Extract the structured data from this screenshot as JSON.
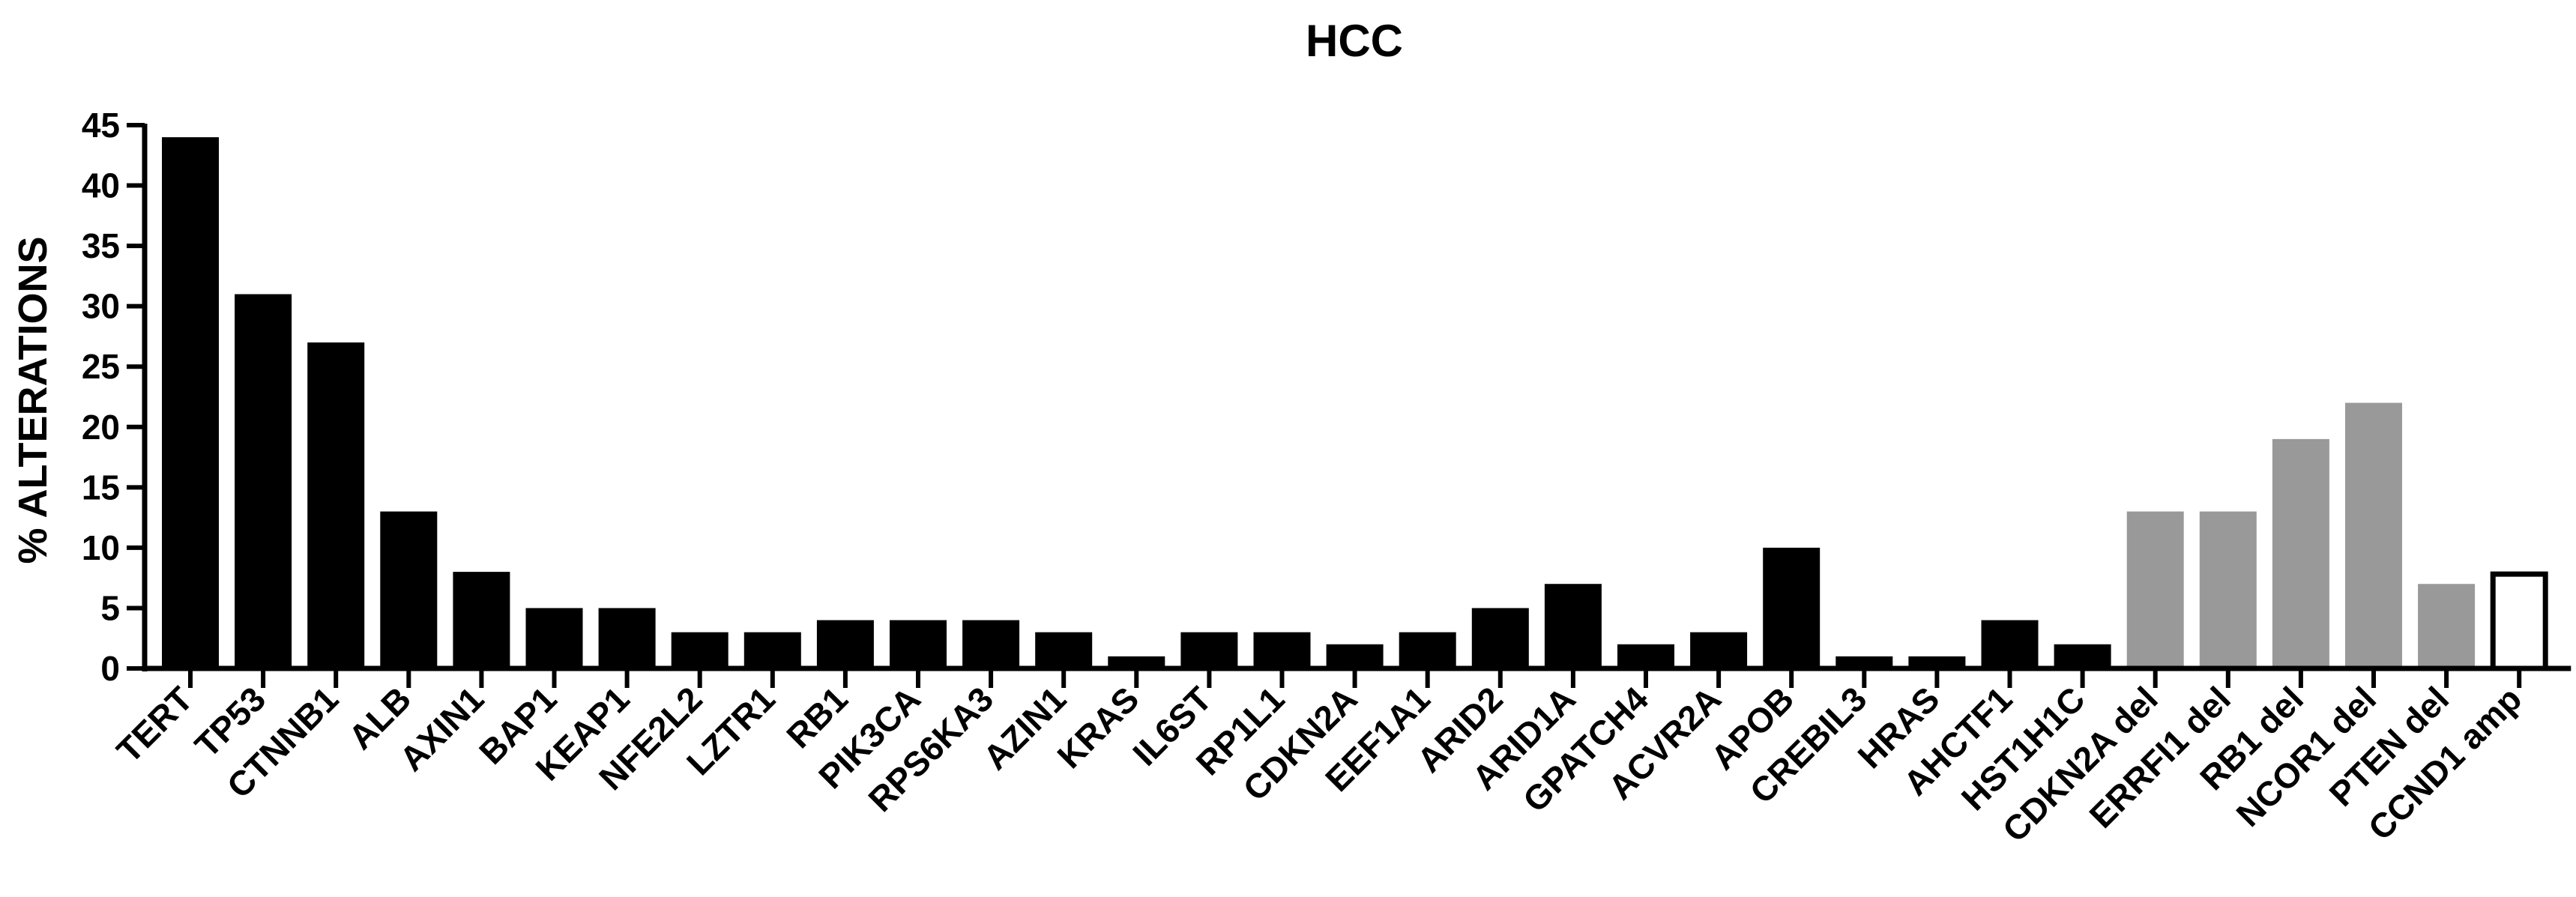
{
  "chart_data": {
    "type": "bar",
    "title": "HCC",
    "xlabel": "",
    "ylabel": "% ALTERATIONS",
    "ylim": [
      0,
      45
    ],
    "yticks": [
      0,
      5,
      10,
      15,
      20,
      25,
      30,
      35,
      40,
      45
    ],
    "categories": [
      "TERT",
      "TP53",
      "CTNNB1",
      "ALB",
      "AXIN1",
      "BAP1",
      "KEAP1",
      "NFE2L2",
      "LZTR1",
      "RB1",
      "PIK3CA",
      "RPS6KA3",
      "AZIN1",
      "KRAS",
      "IL6ST",
      "RP1L1",
      "CDKN2A",
      "EEF1A1",
      "ARID2",
      "ARID1A",
      "GPATCH4",
      "ACVR2A",
      "APOB",
      "CREBIL3",
      "HRAS",
      "AHCTF1",
      "HST1H1C",
      "CDKN2A del",
      "ERRFI1 del",
      "RB1 del",
      "NCOR1 del",
      "PTEN del",
      "CCND1 amp"
    ],
    "values": [
      44,
      31,
      27,
      13,
      8,
      5,
      5,
      3,
      3,
      4,
      4,
      4,
      3,
      1,
      3,
      3,
      2,
      3,
      5,
      7,
      2,
      3,
      10,
      1,
      1,
      4,
      2,
      13,
      13,
      19,
      22,
      7,
      8
    ],
    "bar_styles": [
      "mutation",
      "mutation",
      "mutation",
      "mutation",
      "mutation",
      "mutation",
      "mutation",
      "mutation",
      "mutation",
      "mutation",
      "mutation",
      "mutation",
      "mutation",
      "mutation",
      "mutation",
      "mutation",
      "mutation",
      "mutation",
      "mutation",
      "mutation",
      "mutation",
      "mutation",
      "mutation",
      "mutation",
      "mutation",
      "mutation",
      "mutation",
      "deletion",
      "deletion",
      "deletion",
      "deletion",
      "deletion",
      "amplification"
    ],
    "colors": {
      "mutation": "#000000",
      "deletion": "#999999",
      "amplification": "#ffffff",
      "axis": "#000000"
    },
    "grid": false,
    "legend": "none"
  }
}
